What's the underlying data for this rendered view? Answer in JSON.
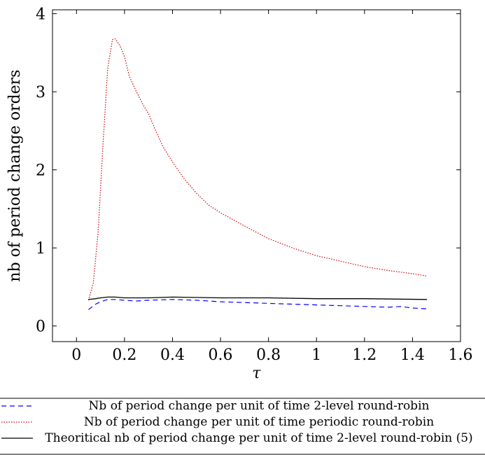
{
  "chart_data": {
    "type": "line",
    "xlabel": "τ",
    "ylabel": "nb of period change orders",
    "xlim": [
      -0.1,
      1.6
    ],
    "ylim": [
      -0.2,
      4.05
    ],
    "xticks": [
      0,
      0.2,
      0.4,
      0.6,
      0.8,
      1,
      1.2,
      1.4,
      1.6
    ],
    "xtick_labels": [
      "0",
      "0.2",
      "0.4",
      "0.6",
      "0.8",
      "1",
      "1.2",
      "1.4",
      "1.6"
    ],
    "yticks": [
      0,
      1,
      2,
      3,
      4
    ],
    "ytick_labels": [
      "0",
      "1",
      "2",
      "3",
      "4"
    ],
    "grid": false,
    "legend_position": "below",
    "series": [
      {
        "name": "Nb of period change per unit of time 2-level round-robin",
        "style": "dashed",
        "color": "#0000ff",
        "x": [
          0.05,
          0.08,
          0.1,
          0.13,
          0.16,
          0.2,
          0.25,
          0.3,
          0.4,
          0.5,
          0.6,
          0.7,
          0.8,
          0.9,
          1.0,
          1.1,
          1.2,
          1.3,
          1.35,
          1.4,
          1.46
        ],
        "y": [
          0.21,
          0.28,
          0.31,
          0.34,
          0.34,
          0.33,
          0.32,
          0.33,
          0.34,
          0.33,
          0.31,
          0.3,
          0.29,
          0.28,
          0.27,
          0.26,
          0.25,
          0.24,
          0.25,
          0.23,
          0.22
        ]
      },
      {
        "name": "Nb of period change per unit of time periodic round-robin",
        "style": "dotted",
        "color": "#cc0000",
        "x": [
          0.05,
          0.07,
          0.09,
          0.11,
          0.13,
          0.15,
          0.16,
          0.18,
          0.2,
          0.22,
          0.25,
          0.28,
          0.3,
          0.33,
          0.36,
          0.4,
          0.45,
          0.5,
          0.55,
          0.6,
          0.7,
          0.8,
          0.9,
          1.0,
          1.1,
          1.2,
          1.3,
          1.4,
          1.46
        ],
        "y": [
          0.33,
          0.55,
          1.2,
          2.3,
          3.3,
          3.67,
          3.68,
          3.6,
          3.45,
          3.2,
          3.0,
          2.82,
          2.72,
          2.5,
          2.3,
          2.1,
          1.88,
          1.7,
          1.55,
          1.45,
          1.28,
          1.12,
          1.0,
          0.9,
          0.83,
          0.76,
          0.71,
          0.67,
          0.64
        ]
      },
      {
        "name": "Theoritical nb of period change per unit of time 2-level round-robin (5)",
        "style": "solid",
        "color": "#000000",
        "x": [
          0.05,
          0.08,
          0.1,
          0.13,
          0.16,
          0.2,
          0.3,
          0.4,
          0.6,
          0.8,
          1.0,
          1.2,
          1.46
        ],
        "y": [
          0.34,
          0.35,
          0.36,
          0.37,
          0.37,
          0.36,
          0.36,
          0.37,
          0.36,
          0.36,
          0.35,
          0.35,
          0.34
        ]
      }
    ]
  }
}
